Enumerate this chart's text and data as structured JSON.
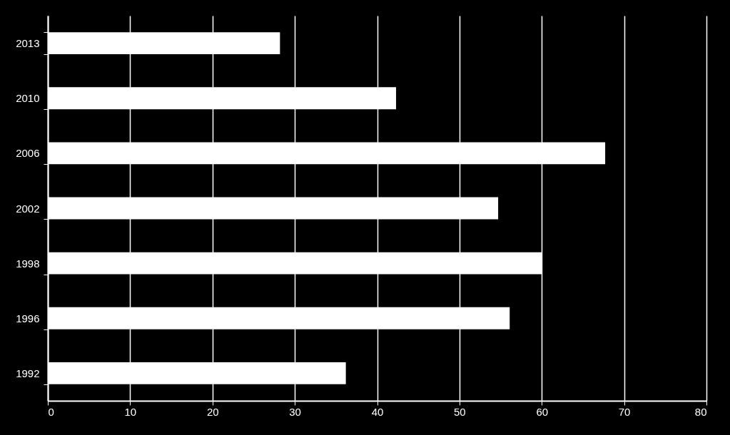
{
  "chart_data": {
    "type": "bar",
    "orientation": "horizontal",
    "categories": [
      "2013",
      "2010",
      "2006",
      "2002",
      "1998",
      "1996",
      "1992"
    ],
    "values": [
      28.2,
      42.3,
      67.7,
      54.7,
      60.0,
      56.1,
      36.2
    ],
    "color": "#ffffff",
    "xlim": [
      0,
      80
    ],
    "xticks": [
      0,
      10,
      20,
      30,
      40,
      50,
      60,
      70,
      80
    ],
    "grid": "x"
  }
}
